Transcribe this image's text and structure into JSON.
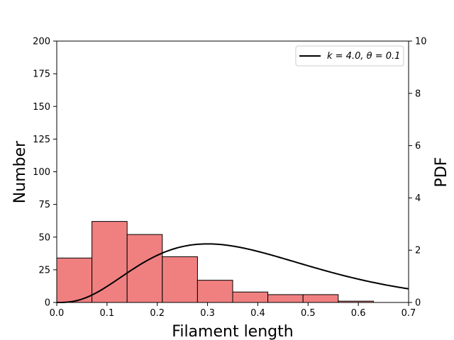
{
  "chart_data": {
    "type": "bar",
    "subtype": "histogram with overlaid gamma PDF line",
    "title": "",
    "xlabel": "Filament length",
    "ylabel_left": "Number",
    "ylabel_right": "PDF",
    "xlim": [
      0.0,
      0.7
    ],
    "ylim_left": [
      0,
      200
    ],
    "ylim_right": [
      0,
      10
    ],
    "x_ticks": [
      "0.0",
      "0.1",
      "0.2",
      "0.3",
      "0.4",
      "0.5",
      "0.6",
      "0.7"
    ],
    "y_left_ticks": [
      "0",
      "25",
      "50",
      "75",
      "100",
      "125",
      "150",
      "175",
      "200"
    ],
    "y_right_ticks": [
      "0",
      "2",
      "4",
      "6",
      "8",
      "10"
    ],
    "grid": false,
    "legend_position": "top-right",
    "histogram": {
      "color": "#f08080",
      "edge_color": "#000000",
      "bin_edges": [
        0.0,
        0.07,
        0.14,
        0.21,
        0.28,
        0.35,
        0.42,
        0.49,
        0.56,
        0.63
      ],
      "counts": [
        34,
        62,
        52,
        35,
        17,
        8,
        6,
        6,
        1
      ]
    },
    "series": [
      {
        "name": "k = 4.0, θ = 0.1",
        "type": "line",
        "axis": "right",
        "color": "#000000",
        "distribution": "gamma",
        "k": 4.0,
        "theta": 0.1
      }
    ]
  }
}
